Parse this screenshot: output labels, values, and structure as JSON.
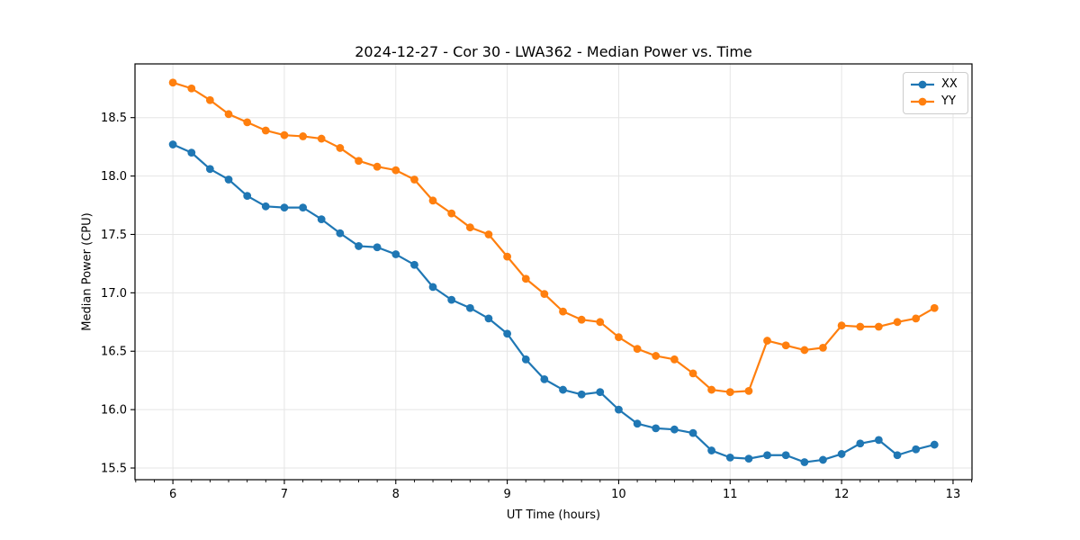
{
  "chart_data": {
    "type": "line",
    "title": "2024-12-27 - Cor 30 - LWA362 - Median Power vs. Time",
    "xlabel": "UT Time (hours)",
    "ylabel": "Median Power (CPU)",
    "xlim": [
      5.66,
      13.17
    ],
    "ylim": [
      15.4,
      18.96
    ],
    "x_major_ticks": [
      6,
      7,
      8,
      9,
      10,
      11,
      12,
      13
    ],
    "x_minor_tick_step": 0.166667,
    "y_major_ticks": [
      15.5,
      16.0,
      16.5,
      17.0,
      17.5,
      18.0,
      18.5
    ],
    "grid": true,
    "grid_color": "#e5e5e5",
    "legend_position": "upper right",
    "x": [
      6.0,
      6.167,
      6.333,
      6.5,
      6.667,
      6.833,
      7.0,
      7.167,
      7.333,
      7.5,
      7.667,
      7.833,
      8.0,
      8.167,
      8.333,
      8.5,
      8.667,
      8.833,
      9.0,
      9.167,
      9.333,
      9.5,
      9.667,
      9.833,
      10.0,
      10.167,
      10.333,
      10.5,
      10.667,
      10.833,
      11.0,
      11.167,
      11.333,
      11.5,
      11.667,
      11.833,
      12.0,
      12.167,
      12.333,
      12.5,
      12.667,
      12.833
    ],
    "series": [
      {
        "name": "XX",
        "color": "#1f77b4",
        "values": [
          18.27,
          18.2,
          18.06,
          17.97,
          17.83,
          17.74,
          17.73,
          17.73,
          17.63,
          17.51,
          17.4,
          17.39,
          17.33,
          17.24,
          17.05,
          16.94,
          16.87,
          16.78,
          16.65,
          16.43,
          16.26,
          16.17,
          16.13,
          16.15,
          16.0,
          15.88,
          15.84,
          15.83,
          15.8,
          15.65,
          15.59,
          15.58,
          15.61,
          15.61,
          15.55,
          15.57,
          15.62,
          15.71,
          15.74,
          15.61,
          15.66,
          15.7
        ]
      },
      {
        "name": "YY",
        "color": "#ff7f0e",
        "values": [
          18.8,
          18.75,
          18.65,
          18.53,
          18.46,
          18.39,
          18.35,
          18.34,
          18.32,
          18.24,
          18.13,
          18.08,
          18.05,
          17.97,
          17.79,
          17.68,
          17.56,
          17.5,
          17.31,
          17.12,
          16.99,
          16.84,
          16.77,
          16.75,
          16.62,
          16.52,
          16.46,
          16.43,
          16.31,
          16.17,
          16.15,
          16.16,
          16.59,
          16.55,
          16.51,
          16.53,
          16.72,
          16.71,
          16.71,
          16.75,
          16.78,
          16.87
        ]
      }
    ]
  }
}
